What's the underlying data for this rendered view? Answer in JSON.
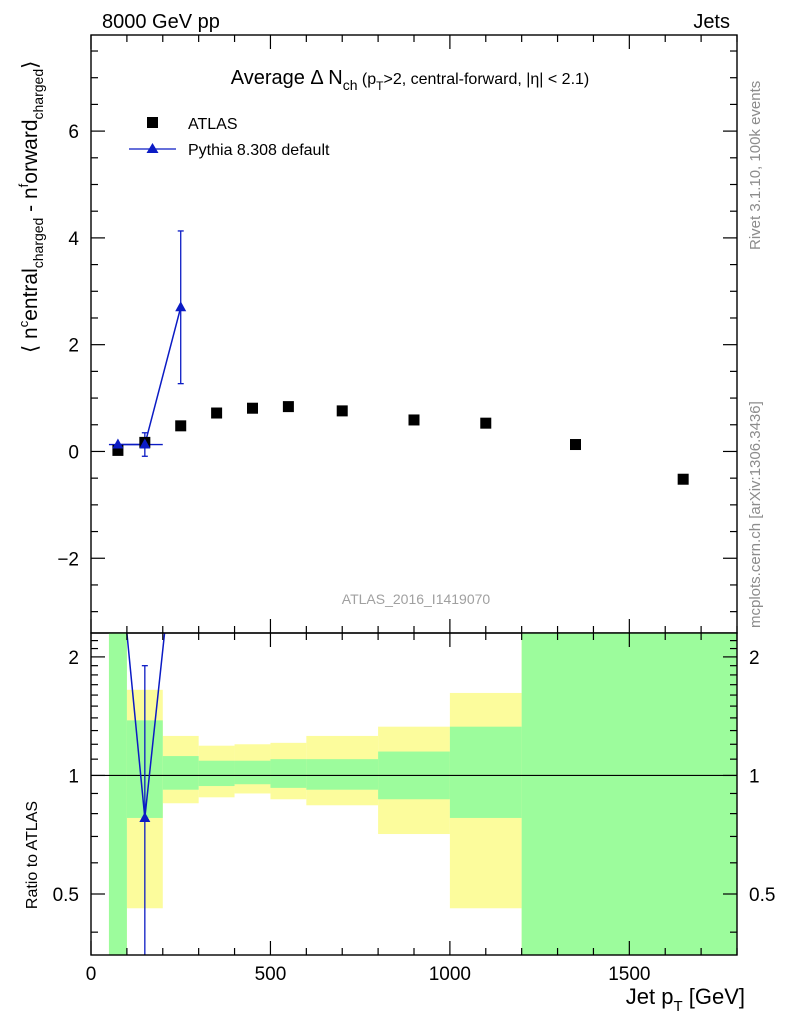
{
  "header": {
    "left": "8000 GeV pp",
    "right": "Jets"
  },
  "main_title": {
    "pre": "Average ",
    "delta": "Δ N",
    "sub_ch": "ch",
    "paren_open": " (p",
    "sub_T": "T",
    "rest": ">2, central-forward, |η| < 2.1)"
  },
  "ylabel_main": {
    "a": "⟨ n",
    "sup_c": "c",
    "b": "entral",
    "sub1": "charged",
    "c": " - n",
    "sup_f": "f",
    "d": "orward",
    "sub2": "charged",
    "e": "⟩"
  },
  "ylabel_ratio": "Ratio to ATLAS",
  "xlabel": {
    "main": "Jet p",
    "sub": "T",
    "unit": " [GeV]"
  },
  "side_text": {
    "rivet": "Rivet 3.1.10,  100k events",
    "mcplots": "mcplots.cern.ch [arXiv:1306.3436]"
  },
  "watermark": "ATLAS_2016_I1419070",
  "legend": {
    "atlas": "ATLAS",
    "pythia": "Pythia 8.308 default",
    "placement": "top-left"
  },
  "colors": {
    "data": "#000000",
    "mc": "#0b1bc4",
    "band_inner": "#9cfc9c",
    "band_outer": "#fcfc9c",
    "side_text": "#8c8c8c"
  },
  "chart_data": {
    "type": "scatter",
    "main": {
      "xlim": [
        0,
        1800
      ],
      "ylim": [
        -3.4,
        7.8
      ],
      "yticks": [
        -2,
        0,
        2,
        4,
        6
      ],
      "ytick_labels": [
        "−2",
        "0",
        "2",
        "4",
        "6"
      ],
      "series": [
        {
          "name": "ATLAS",
          "x": [
            75,
            150,
            250,
            350,
            450,
            550,
            700,
            900,
            1100,
            1350,
            1650
          ],
          "y": [
            0.02,
            0.17,
            0.48,
            0.72,
            0.81,
            0.84,
            0.76,
            0.59,
            0.53,
            0.13,
            -0.52
          ]
        },
        {
          "name": "Pythia 8.308 default",
          "x": [
            75,
            150,
            250
          ],
          "y": [
            0.13,
            0.13,
            2.7
          ],
          "yerr": [
            0,
            0.22,
            1.43
          ],
          "xedges": [
            [
              50,
              100
            ],
            [
              100,
              200
            ],
            [
              200,
              300
            ]
          ]
        }
      ]
    },
    "ratio": {
      "xlim": [
        0,
        1800
      ],
      "ylim": [
        0.35,
        2.3
      ],
      "yticks": [
        0.5,
        1,
        2
      ],
      "ytick_labels": [
        "0.5",
        "1",
        "2"
      ],
      "xticks": [
        0,
        500,
        1000,
        1500
      ],
      "xtick_labels": [
        "0",
        "500",
        "1000",
        "1500"
      ],
      "bands": [
        {
          "x0": 50,
          "x1": 100,
          "outer": [
            0.35,
            2.3
          ],
          "inner": [
            0.35,
            2.3
          ]
        },
        {
          "x0": 100,
          "x1": 200,
          "outer": [
            0.46,
            1.65
          ],
          "inner": [
            0.78,
            1.38
          ]
        },
        {
          "x0": 200,
          "x1": 300,
          "outer": [
            0.85,
            1.26
          ],
          "inner": [
            0.92,
            1.12
          ]
        },
        {
          "x0": 300,
          "x1": 400,
          "outer": [
            0.88,
            1.19
          ],
          "inner": [
            0.94,
            1.09
          ]
        },
        {
          "x0": 400,
          "x1": 500,
          "outer": [
            0.9,
            1.2
          ],
          "inner": [
            0.95,
            1.09
          ]
        },
        {
          "x0": 500,
          "x1": 600,
          "outer": [
            0.87,
            1.21
          ],
          "inner": [
            0.93,
            1.1
          ]
        },
        {
          "x0": 600,
          "x1": 800,
          "outer": [
            0.84,
            1.26
          ],
          "inner": [
            0.92,
            1.1
          ]
        },
        {
          "x0": 800,
          "x1": 1000,
          "outer": [
            0.71,
            1.33
          ],
          "inner": [
            0.87,
            1.15
          ]
        },
        {
          "x0": 1000,
          "x1": 1200,
          "outer": [
            0.46,
            1.62
          ],
          "inner": [
            0.78,
            1.33
          ]
        },
        {
          "x0": 1200,
          "x1": 1800,
          "outer": [
            0.35,
            2.3
          ],
          "inner": [
            0.35,
            2.3
          ]
        }
      ],
      "mc_points": [
        {
          "x": 150,
          "y": 0.78,
          "ylo": 0.35,
          "yhi": 1.9
        }
      ],
      "mc_line": [
        {
          "x": 100,
          "y": 2.3
        },
        {
          "x": 150,
          "y": 0.78
        },
        {
          "x": 205,
          "y": 2.3
        }
      ]
    }
  }
}
